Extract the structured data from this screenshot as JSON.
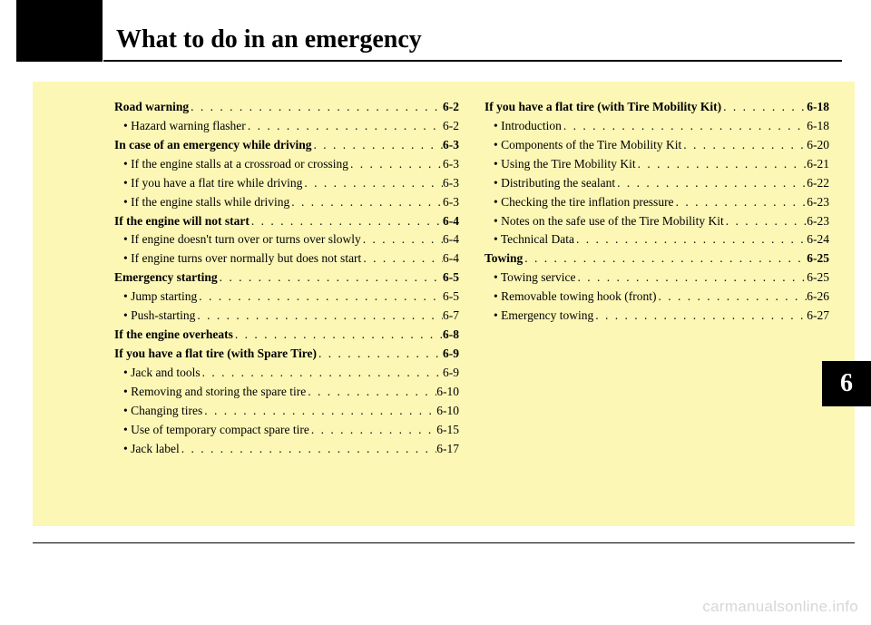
{
  "title": "What to do in an emergency",
  "chapter_number": "6",
  "watermark": "carmanualsonline.info",
  "colors": {
    "page_bg": "#ffffff",
    "content_bg": "#fdf7b6",
    "text": "#000000",
    "tab_bg": "#000000",
    "tab_text": "#ffffff",
    "watermark": "#d7d7d7"
  },
  "typography": {
    "title_fontsize": 28,
    "body_fontsize": 13.5,
    "chapter_fontsize": 28,
    "font_family": "Times New Roman"
  },
  "left_column": [
    {
      "type": "section",
      "label": "Road warning",
      "page": "6-2"
    },
    {
      "type": "sub",
      "label": "Hazard warning flasher",
      "page": "6-2"
    },
    {
      "type": "section",
      "label": "In case of an emergency while driving",
      "page": "6-3"
    },
    {
      "type": "sub",
      "label": "If the engine stalls at a crossroad or crossing",
      "page": "6-3"
    },
    {
      "type": "sub",
      "label": "If you have a flat tire while driving",
      "page": "6-3"
    },
    {
      "type": "sub",
      "label": "If the engine stalls while driving",
      "page": "6-3"
    },
    {
      "type": "section",
      "label": "If the engine will not start",
      "page": "6-4"
    },
    {
      "type": "sub",
      "label": "If engine doesn't turn over or turns over slowly",
      "page": "6-4"
    },
    {
      "type": "sub",
      "label": "If engine turns over normally but does not start",
      "page": "6-4"
    },
    {
      "type": "section",
      "label": "Emergency starting",
      "page": "6-5"
    },
    {
      "type": "sub",
      "label": "Jump starting",
      "page": "6-5"
    },
    {
      "type": "sub",
      "label": "Push-starting",
      "page": "6-7"
    },
    {
      "type": "section",
      "label": "If the engine overheats",
      "page": "6-8"
    },
    {
      "type": "section",
      "label": "If you have a flat tire (with Spare Tire)",
      "page": "6-9"
    },
    {
      "type": "sub",
      "label": "Jack and tools",
      "page": "6-9"
    },
    {
      "type": "sub",
      "label": "Removing and storing the spare tire",
      "page": "6-10"
    },
    {
      "type": "sub",
      "label": "Changing tires",
      "page": "6-10"
    },
    {
      "type": "sub",
      "label": "Use of temporary compact spare tire",
      "page": "6-15"
    },
    {
      "type": "sub",
      "label": "Jack label",
      "page": "6-17"
    }
  ],
  "right_column": [
    {
      "type": "section",
      "label": "If you have a flat tire (with Tire Mobility Kit)",
      "page": "6-18"
    },
    {
      "type": "sub",
      "label": "Introduction",
      "page": "6-18"
    },
    {
      "type": "sub",
      "label": "Components of the Tire Mobility Kit",
      "page": "6-20"
    },
    {
      "type": "sub",
      "label": "Using the Tire Mobility Kit",
      "page": "6-21"
    },
    {
      "type": "sub",
      "label": "Distributing the sealant",
      "page": "6-22"
    },
    {
      "type": "sub",
      "label": "Checking the tire inflation pressure",
      "page": "6-23"
    },
    {
      "type": "sub",
      "label": "Notes on the safe use of the Tire Mobility Kit",
      "page": "6-23"
    },
    {
      "type": "sub",
      "label": "Technical Data",
      "page": "6-24"
    },
    {
      "type": "section",
      "label": "Towing",
      "page": "6-25"
    },
    {
      "type": "sub",
      "label": "Towing service",
      "page": "6-25"
    },
    {
      "type": "sub",
      "label": "Removable towing hook (front)",
      "page": "6-26"
    },
    {
      "type": "sub",
      "label": "Emergency towing",
      "page": "6-27"
    }
  ]
}
